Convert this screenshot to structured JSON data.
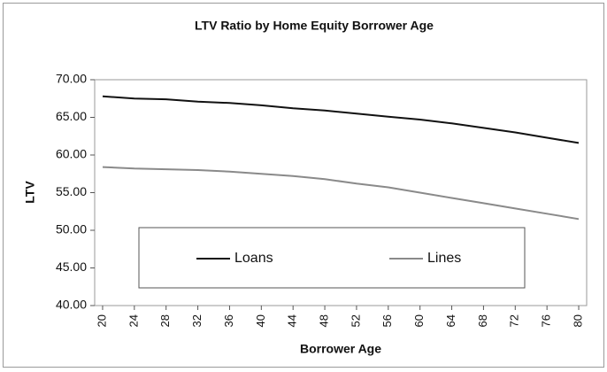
{
  "chart_data": {
    "type": "line",
    "title": "LTV Ratio by Home Equity Borrower Age",
    "x_label": "Borrower Age",
    "y_label": "LTV",
    "x": [
      20,
      24,
      28,
      32,
      36,
      40,
      44,
      48,
      52,
      56,
      60,
      64,
      68,
      72,
      76,
      80
    ],
    "series": [
      {
        "name": "Loans",
        "color": "#111111",
        "values": [
          67.8,
          67.5,
          67.4,
          67.1,
          66.9,
          66.6,
          66.2,
          65.9,
          65.5,
          65.1,
          64.7,
          64.2,
          63.6,
          63.0,
          62.3,
          61.6
        ]
      },
      {
        "name": "Lines",
        "color": "#8a8a8a",
        "values": [
          58.4,
          58.2,
          58.1,
          58.0,
          57.8,
          57.5,
          57.2,
          56.8,
          56.2,
          55.7,
          55.0,
          54.3,
          53.6,
          52.9,
          52.2,
          51.5
        ]
      }
    ],
    "xlim": [
      19,
      81
    ],
    "xticks": [
      20,
      24,
      28,
      32,
      36,
      40,
      44,
      48,
      52,
      56,
      60,
      64,
      68,
      72,
      76,
      80
    ],
    "ylim": [
      40,
      70
    ],
    "yticks": [
      {
        "value": 40,
        "label": "40.00"
      },
      {
        "value": 45,
        "label": "45.00"
      },
      {
        "value": 50,
        "label": "50.00"
      },
      {
        "value": 55,
        "label": "55.00"
      },
      {
        "value": 60,
        "label": "60.00"
      },
      {
        "value": 65,
        "label": "65.00"
      },
      {
        "value": 70,
        "label": "70.00"
      }
    ],
    "grid": false,
    "legend": "inside"
  }
}
